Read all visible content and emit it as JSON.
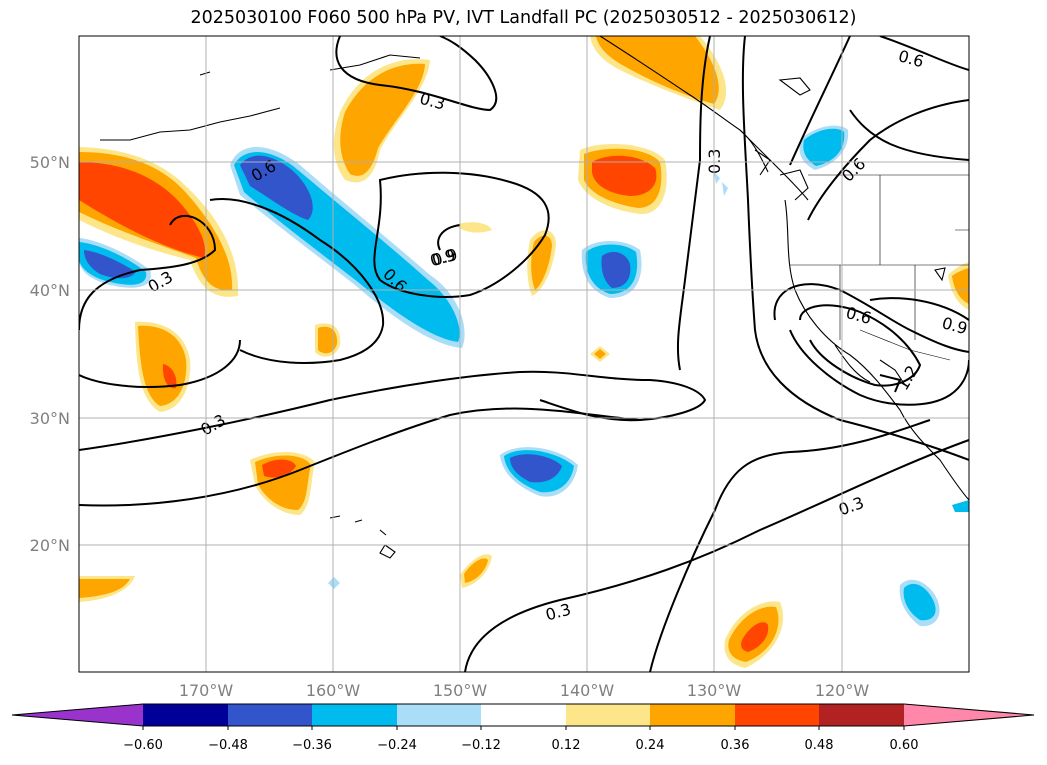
{
  "title": "2025030100 F060 500 hPa PV, IVT Landfall PC (2025030512 - 2025030612)",
  "axes": {
    "lon_ticks": [
      "170°W",
      "160°W",
      "150°W",
      "140°W",
      "130°W",
      "120°W"
    ],
    "lat_ticks": [
      "50°N",
      "40°N",
      "30°N",
      "20°N"
    ],
    "lon_range": [
      -180,
      -110
    ],
    "lat_range": [
      10,
      60
    ],
    "grid": true
  },
  "colorbar": {
    "ticks": [
      "−0.60",
      "−0.48",
      "−0.36",
      "−0.24",
      "−0.12",
      "0.12",
      "0.24",
      "0.36",
      "0.48",
      "0.60"
    ],
    "colors": [
      "#9933cc",
      "#000099",
      "#3355cc",
      "#00bbee",
      "#aaddf8",
      "#ffffff",
      "#fde68a",
      "#ffa500",
      "#ff4500",
      "#b22222",
      "#ff88aa"
    ],
    "extend": "both"
  },
  "contour_labels": [
    "0.3",
    "0.6",
    "0.9",
    "0.3",
    "0.6",
    "0.3",
    "0.3",
    "0.3",
    "0.6",
    "0.6",
    "0.9",
    "0.6",
    "0.9",
    "0.3",
    "1.2"
  ]
}
